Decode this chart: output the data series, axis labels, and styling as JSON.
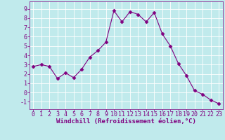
{
  "x": [
    0,
    1,
    2,
    3,
    4,
    5,
    6,
    7,
    8,
    9,
    10,
    11,
    12,
    13,
    14,
    15,
    16,
    17,
    18,
    19,
    20,
    21,
    22,
    23
  ],
  "y": [
    2.8,
    3.0,
    2.8,
    1.5,
    2.1,
    1.6,
    2.5,
    3.8,
    4.5,
    5.4,
    8.8,
    7.6,
    8.7,
    8.4,
    7.6,
    8.6,
    6.3,
    5.0,
    3.1,
    1.8,
    0.2,
    -0.2,
    -0.8,
    -1.2
  ],
  "line_color": "#800080",
  "marker": "D",
  "marker_size": 2.5,
  "bg_color": "#c0eaec",
  "grid_color": "#ffffff",
  "xlabel": "Windchill (Refroidissement éolien,°C)",
  "ylim": [
    -1.8,
    9.8
  ],
  "xlim": [
    -0.5,
    23.5
  ],
  "yticks": [
    -1,
    0,
    1,
    2,
    3,
    4,
    5,
    6,
    7,
    8,
    9
  ],
  "xticks": [
    0,
    1,
    2,
    3,
    4,
    5,
    6,
    7,
    8,
    9,
    10,
    11,
    12,
    13,
    14,
    15,
    16,
    17,
    18,
    19,
    20,
    21,
    22,
    23
  ],
  "tick_color": "#800080",
  "label_color": "#800080",
  "label_fontsize": 6.5,
  "tick_fontsize": 6.0,
  "line_width": 0.8
}
